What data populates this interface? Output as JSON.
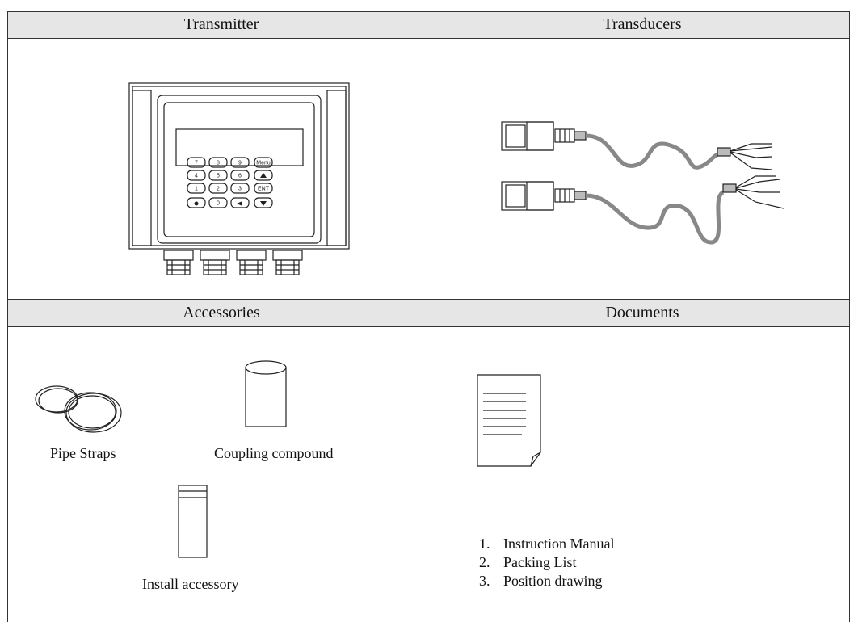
{
  "sections": [
    {
      "title": "Transmitter",
      "keypad": [
        [
          "7",
          "8",
          "9",
          "Menu"
        ],
        [
          "4",
          "5",
          "6",
          null
        ],
        [
          "1",
          "2",
          "3",
          "ENT"
        ],
        [
          null,
          "0",
          null,
          null
        ]
      ]
    },
    {
      "title": "Transducers"
    },
    {
      "title": "Accessories",
      "items": [
        "Pipe Straps",
        "Coupling compound",
        "Install accessory"
      ]
    },
    {
      "title": "Documents",
      "list": [
        {
          "marker": "1.",
          "text": "Instruction Manual"
        },
        {
          "marker": "2.",
          "text": "Packing List"
        },
        {
          "marker": "3.",
          "text": "Position drawing"
        }
      ]
    }
  ]
}
